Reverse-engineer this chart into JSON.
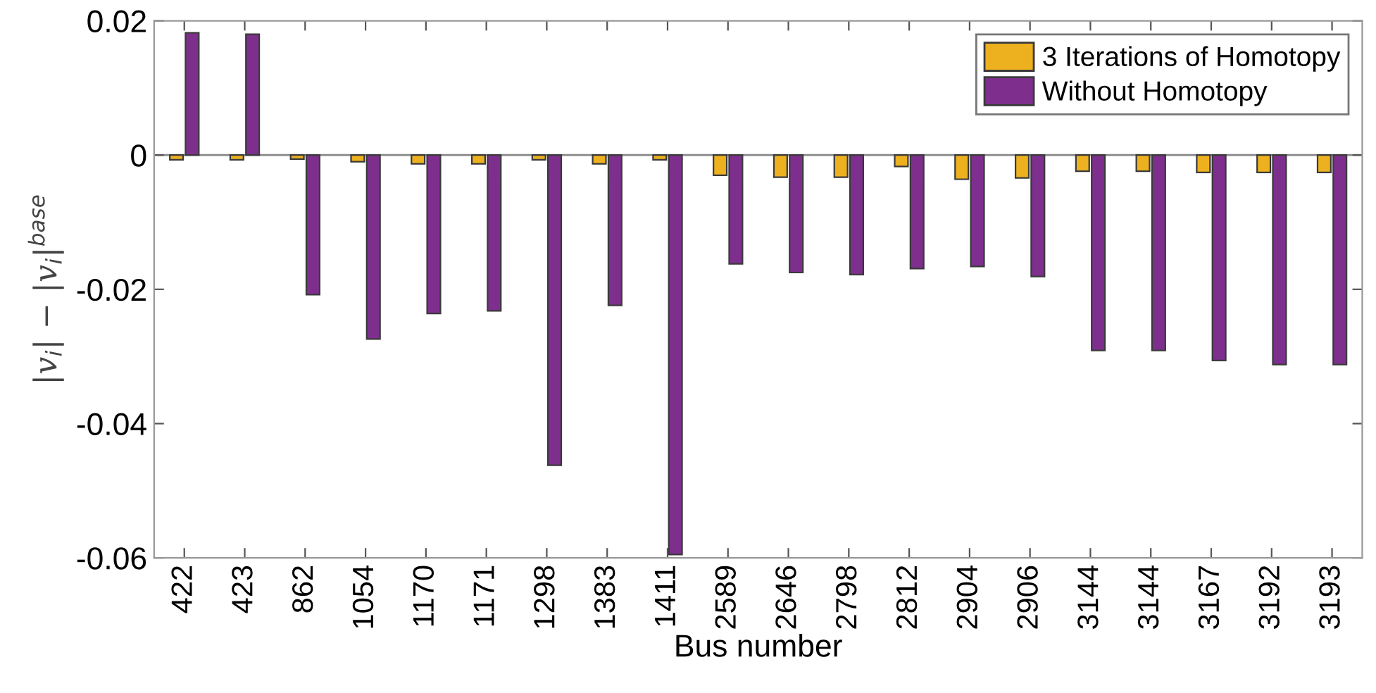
{
  "chart_data": {
    "type": "bar",
    "xlabel": "Bus number",
    "ylabel": "|v$_{i}$| − |v$_{i}$|$^{base}$",
    "categories": [
      "422",
      "423",
      "862",
      "1054",
      "1170",
      "1171",
      "1298",
      "1383",
      "1411",
      "2589",
      "2646",
      "2798",
      "2812",
      "2904",
      "2906",
      "3144",
      "3144",
      "3167",
      "3192",
      "3193"
    ],
    "series": [
      {
        "name": "3 Iterations of Homotopy",
        "color": "#edb120",
        "values": [
          -0.0007,
          -0.0007,
          -0.0006,
          -0.001,
          -0.0013,
          -0.0013,
          -0.0007,
          -0.0013,
          -0.0007,
          -0.003,
          -0.0033,
          -0.0033,
          -0.0017,
          -0.0036,
          -0.0034,
          -0.0024,
          -0.0024,
          -0.0026,
          -0.0026,
          -0.0026
        ]
      },
      {
        "name": "Without Homotopy",
        "color": "#7e2f8e",
        "values": [
          0.0182,
          0.018,
          -0.0208,
          -0.0274,
          -0.0236,
          -0.0232,
          -0.0462,
          -0.0224,
          -0.0595,
          -0.0162,
          -0.0175,
          -0.0178,
          -0.0169,
          -0.0166,
          -0.0181,
          -0.0291,
          -0.0291,
          -0.0306,
          -0.0312,
          -0.0312
        ]
      }
    ],
    "ylim": [
      -0.06,
      0.02
    ],
    "yticks": [
      {
        "value": -0.06,
        "label": "-0.06"
      },
      {
        "value": -0.04,
        "label": "-0.04"
      },
      {
        "value": -0.02,
        "label": "-0.02"
      },
      0,
      0.02
    ],
    "ref_lines": [
      {
        "axis": "y",
        "value": 0,
        "color": "#888888"
      }
    ],
    "grid": false,
    "legend": "top right"
  }
}
